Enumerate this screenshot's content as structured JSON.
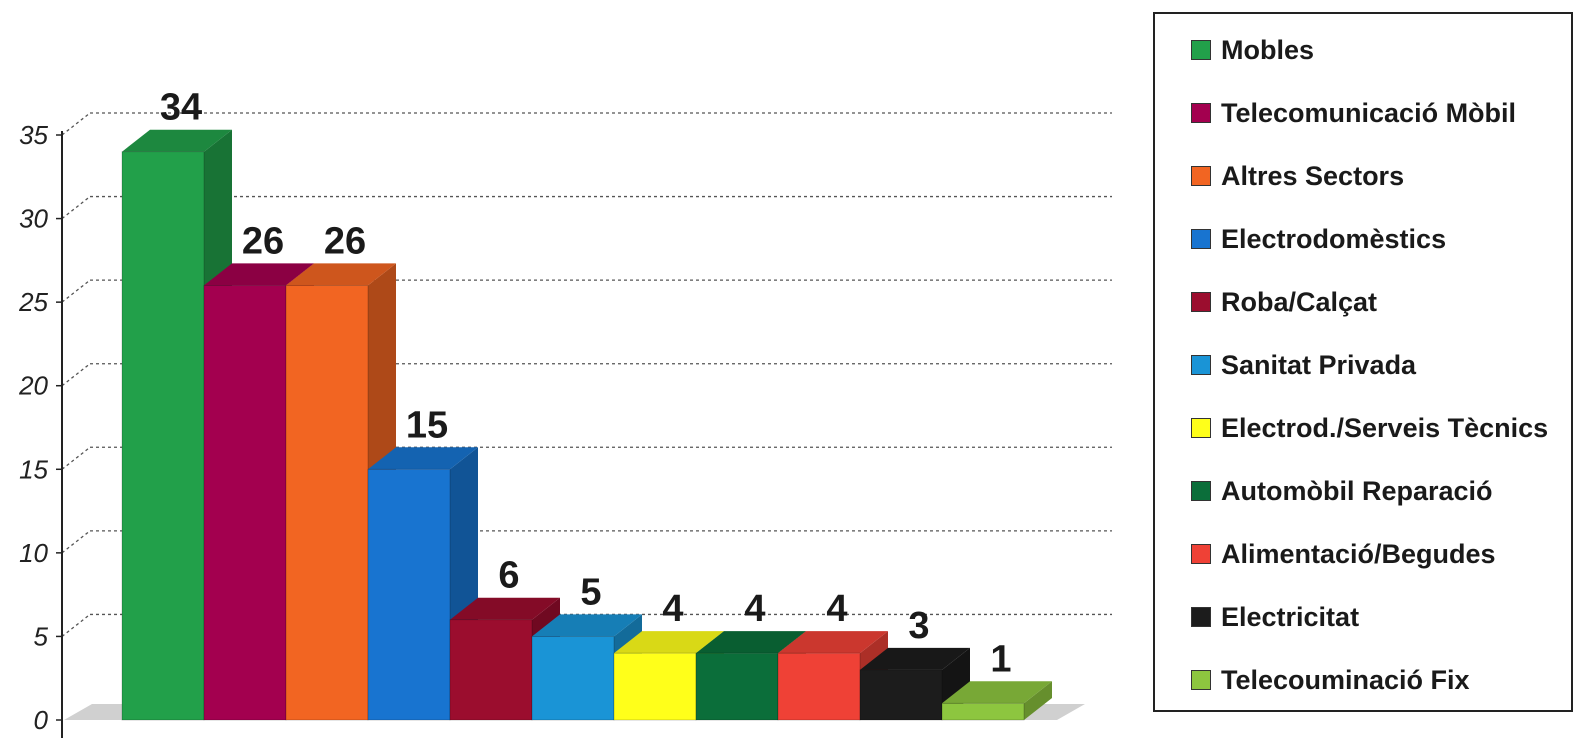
{
  "chart_data": {
    "type": "bar",
    "categories": [
      "Mobles",
      "Telecomunicació Mòbil",
      "Altres Sectors",
      "Electrodomèstics",
      "Roba/Calçat",
      "Sanitat Privada",
      "Electrod./Serveis Tècnics",
      "Automòbil Reparació",
      "Alimentació/Begudes",
      "Electricitat",
      "Telecouminació Fix"
    ],
    "values": [
      34,
      26,
      26,
      15,
      6,
      5,
      4,
      4,
      4,
      3,
      1
    ],
    "value_labels": [
      "34",
      "26",
      "26",
      "15",
      "6",
      "5",
      "4",
      "4",
      "4",
      "3",
      "1"
    ],
    "colors": [
      "#22a04a",
      "#a3004f",
      "#f26522",
      "#1874d0",
      "#9b0d2e",
      "#1a94d6",
      "#ffff1a",
      "#0b6e3a",
      "#ef4136",
      "#1c1c1c",
      "#8dc63f"
    ],
    "ylim": [
      0,
      35
    ],
    "yticks": [
      "0",
      "5",
      "10",
      "15",
      "20",
      "25",
      "30",
      "35"
    ],
    "grid": true,
    "legend_position": "right",
    "style": "3d-bar"
  }
}
